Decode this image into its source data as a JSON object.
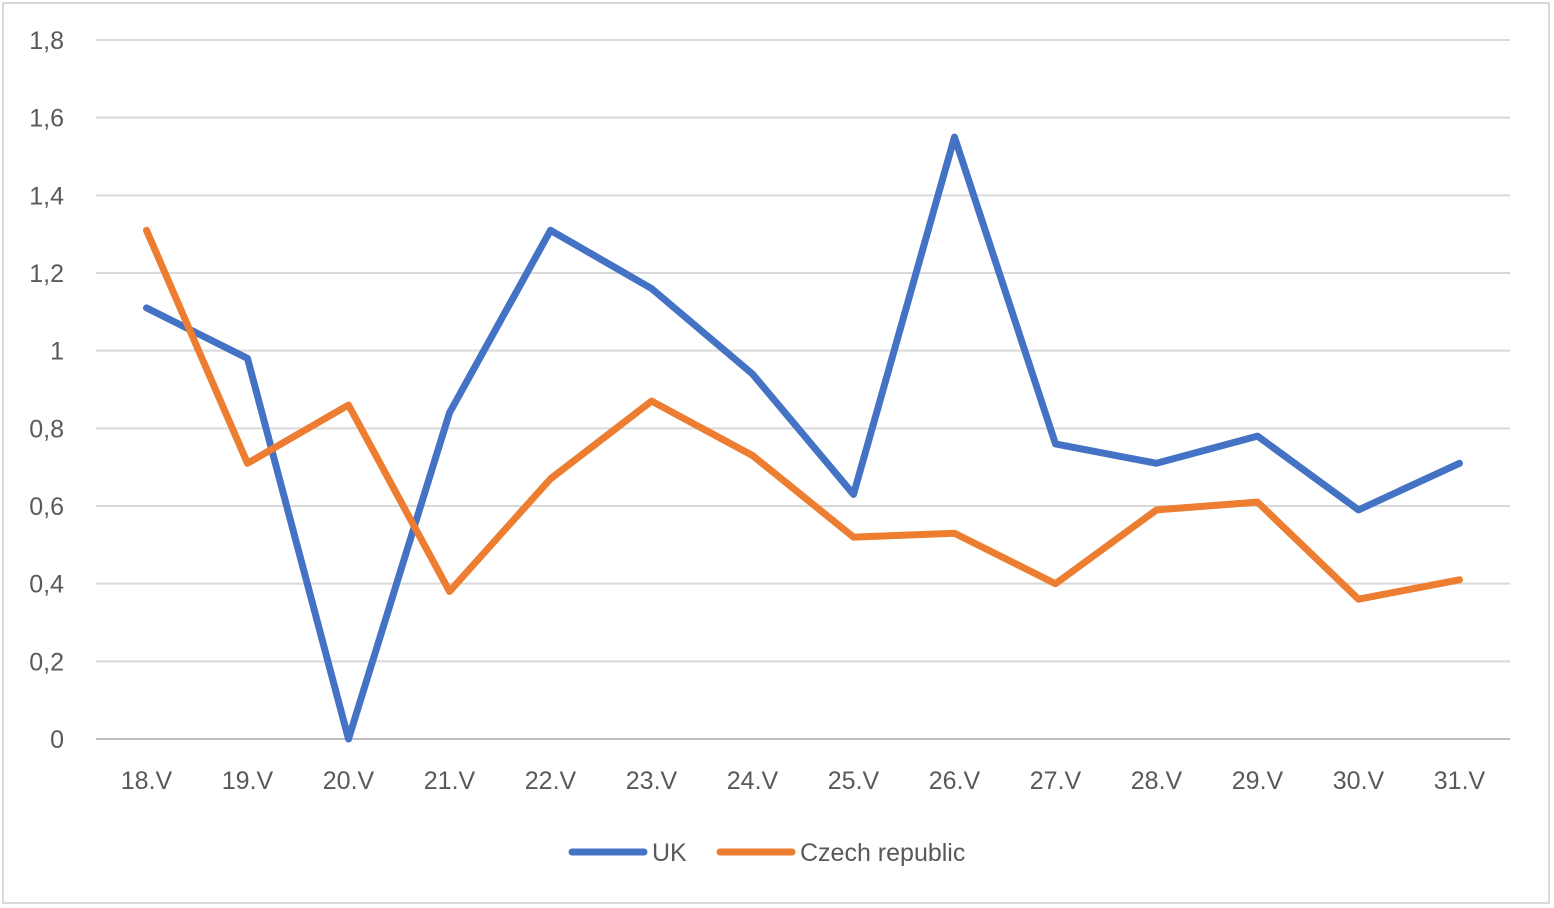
{
  "chart_data": {
    "type": "line",
    "title": "",
    "xlabel": "",
    "ylabel": "",
    "categories": [
      "18.V",
      "19.V",
      "20.V",
      "21.V",
      "22.V",
      "23.V",
      "24.V",
      "25.V",
      "26.V",
      "27.V",
      "28.V",
      "29.V",
      "30.V",
      "31.V"
    ],
    "y_ticks": [
      "0",
      "0,2",
      "0,4",
      "0,6",
      "0,8",
      "1",
      "1,2",
      "1,4",
      "1,6",
      "1,8"
    ],
    "ylim": [
      0,
      1.8
    ],
    "grid": true,
    "legend_position": "bottom",
    "series": [
      {
        "name": "UK",
        "color": "#4472c4",
        "values": [
          1.11,
          0.98,
          0.0,
          0.84,
          1.31,
          1.16,
          0.94,
          0.63,
          1.55,
          0.76,
          0.71,
          0.78,
          0.59,
          0.71
        ]
      },
      {
        "name": "Czech republic",
        "color": "#ed7d31",
        "values": [
          1.31,
          0.71,
          0.86,
          0.38,
          0.67,
          0.87,
          0.73,
          0.52,
          0.53,
          0.4,
          0.59,
          0.61,
          0.36,
          0.41
        ]
      }
    ]
  }
}
